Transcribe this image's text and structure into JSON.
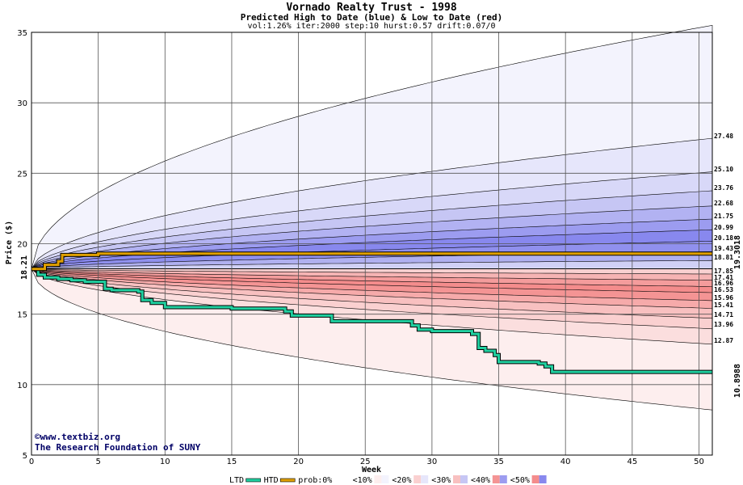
{
  "chart_data": {
    "type": "area",
    "title": "Vornado Realty Trust - 1998",
    "subtitle": "Predicted High to Date (blue) &  Low to Date (red)",
    "params": "vol:1.26% iter:2000 step:10 hurst:0.57 drift:0.07/0",
    "xlabel": "Week",
    "ylabel": "Price ($)",
    "xlim": [
      0,
      51
    ],
    "ylim": [
      5,
      35
    ],
    "xticks": [
      0,
      5,
      10,
      15,
      20,
      25,
      30,
      35,
      40,
      45,
      50
    ],
    "yticks": [
      5,
      10,
      15,
      20,
      25,
      30,
      35
    ],
    "grid": true,
    "start_price": "18.21",
    "high_to_date_current": "19.3018",
    "low_to_date_current": "10.8988",
    "high_percentile_levels": [
      "27.48",
      "25.10",
      "23.76",
      "22.68",
      "21.75",
      "20.99",
      "20.18",
      "19.43",
      "18.81"
    ],
    "low_percentile_levels": [
      "17.85",
      "17.41",
      "16.96",
      "16.53",
      "15.96",
      "15.41",
      "14.71",
      "13.96",
      "12.87"
    ],
    "series": [
      {
        "name": "LTD",
        "color": "#20d0a0",
        "x": [
          0,
          0.5,
          1,
          2,
          3,
          4,
          5,
          5.5,
          6,
          7,
          8,
          8.3,
          9,
          10,
          15,
          19,
          19.5,
          22,
          22.5,
          25,
          28,
          28.5,
          29,
          30,
          33,
          33.5,
          34,
          34.7,
          35,
          38,
          38.5,
          39,
          51
        ],
        "values": [
          18.21,
          17.8,
          17.6,
          17.5,
          17.4,
          17.3,
          17.3,
          16.8,
          16.7,
          16.7,
          16.6,
          16.0,
          15.8,
          15.5,
          15.4,
          15.2,
          14.9,
          14.9,
          14.5,
          14.5,
          14.5,
          14.2,
          13.9,
          13.8,
          13.6,
          12.6,
          12.4,
          12.1,
          11.6,
          11.5,
          11.3,
          10.9,
          10.9
        ]
      },
      {
        "name": "HTD",
        "color": "#e0a000",
        "x": [
          0,
          1,
          2,
          2.3,
          5,
          10,
          20,
          30,
          40,
          51
        ],
        "values": [
          18.21,
          18.5,
          18.75,
          19.2,
          19.3,
          19.3,
          19.3,
          19.3,
          19.3,
          19.3
        ]
      }
    ],
    "legend": [
      "LTD",
      "HTD",
      "prob:0%",
      "<10%",
      "<20%",
      "<30%",
      "<40%",
      "<50%"
    ]
  },
  "credits": {
    "line1": "©www.textbiz.org",
    "line2": "The Research Foundation of SUNY"
  }
}
